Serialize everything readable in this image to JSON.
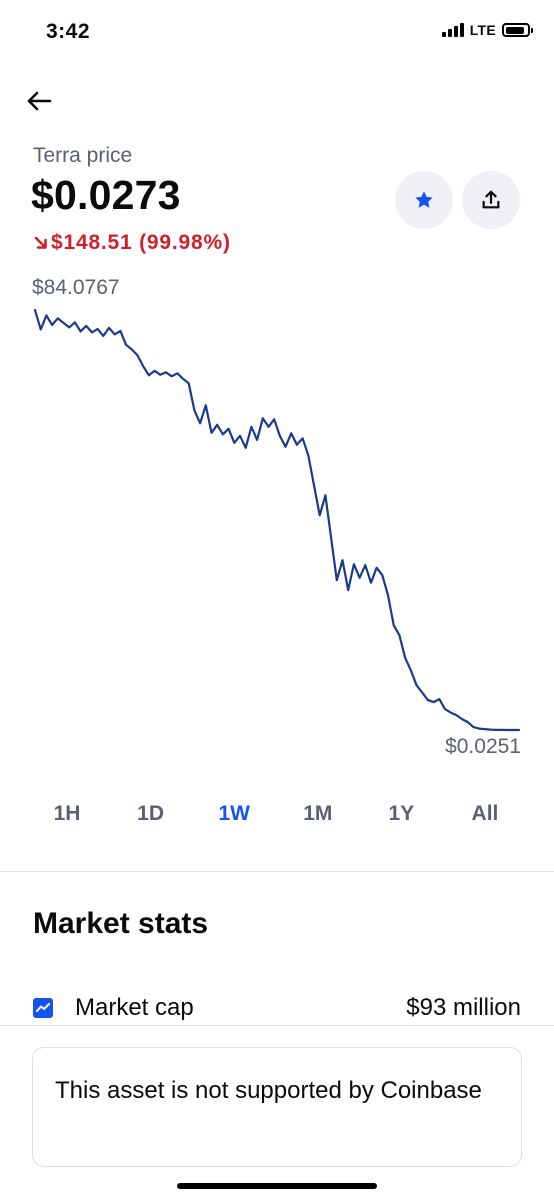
{
  "status_bar": {
    "time": "3:42",
    "network": "LTE",
    "signal_bars": 4,
    "battery_level": 0.9
  },
  "header": {
    "back_icon": "arrow-left-icon",
    "asset_name": "Terra price",
    "price": "$0.0273",
    "change_arrow": "arrow-down-right-icon",
    "change": "$148.51 (99.98%)",
    "watch_icon": "star-icon",
    "share_icon": "share-icon"
  },
  "colors": {
    "accent": "#1652f0",
    "negative": "#cf202f",
    "line": "#1a3a8c",
    "muted": "#5b616e"
  },
  "chart_data": {
    "type": "line",
    "period": "1W",
    "high_label": "$84.0767",
    "low_label": "$0.0251",
    "ylim": [
      0.0251,
      84.0767
    ],
    "values": [
      84.08,
      80.2,
      83.0,
      81.1,
      82.4,
      81.5,
      80.6,
      81.6,
      79.8,
      80.9,
      79.6,
      80.3,
      78.9,
      80.5,
      79.2,
      79.9,
      77.1,
      76.2,
      75.0,
      72.8,
      71.0,
      71.9,
      71.1,
      71.6,
      70.8,
      71.4,
      70.3,
      69.4,
      64.0,
      61.4,
      65.0,
      59.5,
      61.1,
      59.2,
      60.3,
      57.5,
      58.9,
      56.5,
      60.7,
      58.1,
      62.4,
      60.7,
      62.2,
      58.9,
      56.7,
      59.4,
      57.1,
      58.4,
      55.0,
      49.0,
      43.0,
      47.0,
      38.5,
      30.0,
      34.0,
      28.0,
      33.2,
      30.5,
      33.0,
      29.5,
      32.5,
      31.0,
      27.0,
      21.0,
      19.0,
      14.5,
      12.0,
      9.0,
      7.5,
      6.0,
      5.6,
      6.2,
      4.2,
      3.5,
      3.0,
      2.2,
      1.6,
      0.6,
      0.3,
      0.2,
      0.1,
      0.05,
      0.04,
      0.03,
      0.03,
      0.0273
    ]
  },
  "range_tabs": [
    {
      "label": "1H",
      "active": false
    },
    {
      "label": "1D",
      "active": false
    },
    {
      "label": "1W",
      "active": true
    },
    {
      "label": "1M",
      "active": false
    },
    {
      "label": "1Y",
      "active": false
    },
    {
      "label": "All",
      "active": false
    }
  ],
  "market_stats": {
    "title": "Market stats",
    "rows": [
      {
        "icon": "chart-trend-icon",
        "label": "Market cap",
        "value": "$93 million"
      }
    ]
  },
  "notice": {
    "text": "This asset is not supported by Coinbase"
  }
}
